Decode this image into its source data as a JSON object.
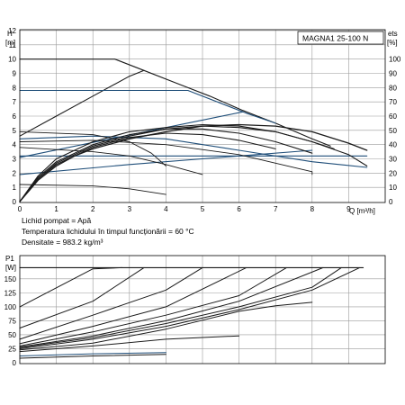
{
  "title": "MAGNA1 25-100 N",
  "notes": [
    "Lichid pompat = Apă",
    "Temperatura lichidului în timpul funcționării = 60 °C",
    "Densitate = 983.2 kg/m³"
  ],
  "colors": {
    "dark": "#1a1a1a",
    "blue": "#1f4e79",
    "grid": "#9a9a9a"
  },
  "chart_data": [
    {
      "type": "line",
      "name": "head-efficiency",
      "ylabel_left": [
        "H",
        "[m]"
      ],
      "ylabel_right": [
        "ets",
        "[%]"
      ],
      "xlabel": "Q [m³/h]",
      "xlim": [
        0,
        10
      ],
      "ylim": [
        0,
        12
      ],
      "ylim_right": [
        0,
        120
      ],
      "xticks": [
        "0",
        "1",
        "2",
        "3",
        "4",
        "5",
        "6",
        "7",
        "8",
        "9"
      ],
      "yticks": [
        "0",
        "1",
        "2",
        "3",
        "4",
        "5",
        "6",
        "7",
        "8",
        "9",
        "10",
        "11",
        "12"
      ],
      "yticks_right": [
        "0",
        "10",
        "20",
        "30",
        "40",
        "50",
        "60",
        "70",
        "80",
        "90",
        "100"
      ],
      "grid": true,
      "series": [
        {
          "color": "dark",
          "width": 1.1,
          "points": [
            [
              0,
              10
            ],
            [
              2.6,
              10
            ],
            [
              3.4,
              9.2
            ],
            [
              4.3,
              8.3
            ],
            [
              5.2,
              7.4
            ],
            [
              6.1,
              6.4
            ],
            [
              7,
              5.5
            ],
            [
              8,
              4.4
            ],
            [
              8.5,
              3.9
            ]
          ]
        },
        {
          "color": "dark",
          "width": 1.1,
          "points": [
            [
              0,
              4.6
            ],
            [
              1,
              6
            ],
            [
              2,
              7.4
            ],
            [
              3,
              8.8
            ],
            [
              3.4,
              9.2
            ]
          ]
        },
        {
          "color": "blue",
          "width": 1.1,
          "points": [
            [
              0,
              7.8
            ],
            [
              4.6,
              7.8
            ],
            [
              6.2,
              6.2
            ],
            [
              7,
              5.5
            ]
          ]
        },
        {
          "color": "blue",
          "width": 1.1,
          "points": [
            [
              0,
              3.1
            ],
            [
              6.1,
              6.3
            ]
          ]
        },
        {
          "color": "blue",
          "width": 1.1,
          "points": [
            [
              0,
              4.4
            ],
            [
              2,
              4.6
            ],
            [
              4,
              4.4
            ],
            [
              6,
              3.6
            ],
            [
              8,
              2.8
            ],
            [
              9.5,
              2.4
            ]
          ]
        },
        {
          "color": "blue",
          "width": 1.1,
          "points": [
            [
              0,
              3.2
            ],
            [
              9.5,
              3.2
            ]
          ]
        },
        {
          "color": "blue",
          "width": 1.1,
          "points": [
            [
              0,
              1.9
            ],
            [
              3,
              2.6
            ],
            [
              6,
              3.2
            ],
            [
              8,
              3.6
            ]
          ]
        },
        {
          "color": "dark",
          "width": 0.9,
          "points": [
            [
              0,
              4.2
            ],
            [
              2,
              4.3
            ],
            [
              4,
              4
            ],
            [
              6,
              3.3
            ],
            [
              8,
              2.1
            ],
            [
              8,
              1.9
            ]
          ]
        },
        {
          "color": "dark",
          "width": 0.9,
          "points": [
            [
              0,
              3.8
            ],
            [
              2,
              3.5
            ],
            [
              3,
              3.2
            ],
            [
              4,
              2.6
            ],
            [
              5,
              1.9
            ]
          ]
        },
        {
          "color": "dark",
          "width": 0.9,
          "points": [
            [
              0,
              4.9
            ],
            [
              2,
              4.7
            ],
            [
              3,
              4.2
            ],
            [
              3.6,
              3.4
            ],
            [
              4,
              2.5
            ]
          ]
        },
        {
          "color": "dark",
          "width": 0.9,
          "points": [
            [
              0,
              1.2
            ],
            [
              2,
              1.1
            ],
            [
              3,
              0.9
            ],
            [
              4,
              0.5
            ]
          ]
        },
        {
          "color": "dark",
          "width": 1.3,
          "points": [
            [
              0,
              0
            ],
            [
              0.5,
              1.5
            ],
            [
              1,
              2.5
            ],
            [
              1.5,
              3.2
            ],
            [
              2,
              3.7
            ],
            [
              3,
              4.4
            ],
            [
              4,
              4.9
            ],
            [
              5,
              5.3
            ],
            [
              6,
              5.4
            ],
            [
              7,
              5.3
            ],
            [
              8,
              4.9
            ],
            [
              9,
              4.1
            ],
            [
              9.5,
              3.6
            ]
          ]
        },
        {
          "color": "dark",
          "width": 1.1,
          "points": [
            [
              0,
              0
            ],
            [
              0.5,
              1.6
            ],
            [
              1,
              2.7
            ],
            [
              2,
              3.9
            ],
            [
              3,
              4.6
            ],
            [
              4,
              5.1
            ],
            [
              5,
              5.3
            ],
            [
              6,
              5.2
            ],
            [
              7,
              4.9
            ],
            [
              8,
              4.2
            ],
            [
              8.6,
              3.7
            ]
          ]
        },
        {
          "color": "dark",
          "width": 1.1,
          "points": [
            [
              0,
              0
            ],
            [
              0.5,
              1.8
            ],
            [
              1,
              3
            ],
            [
              2,
              4.2
            ],
            [
              3,
              4.9
            ],
            [
              4,
              5.2
            ],
            [
              5,
              5.4
            ],
            [
              6,
              5.3
            ],
            [
              7,
              4.9
            ],
            [
              8,
              4.2
            ],
            [
              9,
              3.3
            ],
            [
              9.5,
              2.5
            ]
          ]
        },
        {
          "color": "dark",
          "width": 1.1,
          "points": [
            [
              0,
              0
            ],
            [
              0.5,
              1.7
            ],
            [
              1,
              2.8
            ],
            [
              2,
              4
            ],
            [
              3,
              4.7
            ],
            [
              4,
              5.1
            ],
            [
              5,
              5.1
            ],
            [
              6,
              4.8
            ],
            [
              7,
              4.2
            ],
            [
              8,
              3.4
            ]
          ]
        },
        {
          "color": "dark",
          "width": 1.1,
          "points": [
            [
              0,
              0
            ],
            [
              0.5,
              1.6
            ],
            [
              1,
              2.6
            ],
            [
              2,
              3.8
            ],
            [
              3,
              4.5
            ],
            [
              4,
              4.8
            ],
            [
              5,
              4.7
            ],
            [
              6,
              4.3
            ],
            [
              7,
              3.7
            ]
          ]
        }
      ]
    },
    {
      "type": "line",
      "name": "power",
      "ylabel": [
        "P1",
        "[W]"
      ],
      "xlim": [
        0,
        10
      ],
      "ylim": [
        0,
        190
      ],
      "yticks": [
        "0",
        "25",
        "50",
        "75",
        "100",
        "125",
        "150"
      ],
      "grid": true,
      "series": [
        {
          "color": "dark",
          "width": 1.1,
          "points": [
            [
              0,
              170
            ],
            [
              9.4,
              170
            ]
          ]
        },
        {
          "color": "dark",
          "width": 1,
          "points": [
            [
              0,
              100
            ],
            [
              2,
              168
            ],
            [
              2.8,
              170
            ]
          ]
        },
        {
          "color": "dark",
          "width": 1,
          "points": [
            [
              0,
              62
            ],
            [
              2,
              110
            ],
            [
              3.4,
              170
            ]
          ]
        },
        {
          "color": "dark",
          "width": 1,
          "points": [
            [
              0,
              42
            ],
            [
              2,
              85
            ],
            [
              4,
              130
            ],
            [
              5,
              170
            ]
          ]
        },
        {
          "color": "dark",
          "width": 1,
          "points": [
            [
              0,
              34
            ],
            [
              2,
              65
            ],
            [
              4,
              100
            ],
            [
              6.2,
              170
            ]
          ]
        },
        {
          "color": "dark",
          "width": 1,
          "points": [
            [
              0,
              30
            ],
            [
              2,
              55
            ],
            [
              4,
              85
            ],
            [
              6,
              120
            ],
            [
              7.3,
              170
            ]
          ]
        },
        {
          "color": "dark",
          "width": 1,
          "points": [
            [
              0,
              28
            ],
            [
              2,
              48
            ],
            [
              4,
              75
            ],
            [
              6,
              110
            ],
            [
              8.3,
              170
            ]
          ]
        },
        {
          "color": "dark",
          "width": 1,
          "points": [
            [
              0,
              27
            ],
            [
              2,
              45
            ],
            [
              4,
              70
            ],
            [
              6,
              100
            ],
            [
              8,
              135
            ],
            [
              8.8,
              170
            ]
          ]
        },
        {
          "color": "dark",
          "width": 1,
          "points": [
            [
              0,
              25
            ],
            [
              2,
              42
            ],
            [
              4,
              65
            ],
            [
              6,
              95
            ],
            [
              8,
              130
            ],
            [
              9.3,
              170
            ]
          ]
        },
        {
          "color": "dark",
          "width": 1,
          "points": [
            [
              0,
              23
            ],
            [
              2,
              35
            ],
            [
              4,
              60
            ],
            [
              6,
              92
            ],
            [
              7,
              102
            ],
            [
              8,
              108
            ]
          ]
        },
        {
          "color": "dark",
          "width": 1,
          "points": [
            [
              0,
              20
            ],
            [
              2,
              30
            ],
            [
              4,
              42
            ],
            [
              6,
              48
            ]
          ]
        },
        {
          "color": "blue",
          "width": 1,
          "points": [
            [
              0,
              12
            ],
            [
              2,
              16
            ],
            [
              4,
              18
            ]
          ]
        },
        {
          "color": "dark",
          "width": 1,
          "points": [
            [
              0,
              8
            ],
            [
              2,
              12
            ],
            [
              4,
              15
            ]
          ]
        }
      ]
    }
  ]
}
